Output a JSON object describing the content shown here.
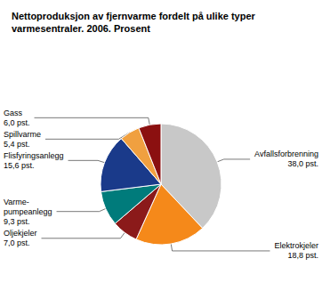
{
  "chart_data": {
    "type": "pie",
    "title": "Nettoproduksjon av fjernvarme fordelt på ulike typer\nvarmesentraler. 2006. Prosent",
    "categories": [
      "Avfallsforbrenning",
      "Elektrokjeler",
      "Oljekjeler",
      "Varme-\npumpeanlegg",
      "Flisfyringsanlegg",
      "Spillvarme",
      "Gass"
    ],
    "values": [
      38.0,
      18.8,
      7.0,
      9.3,
      15.6,
      5.4,
      6.0
    ],
    "value_labels": [
      "38,0 pst.",
      "18,8 pst.",
      "7,0 pst.",
      "9,3 pst.",
      "15,6 pst.",
      "5,4 pst.",
      "6,0 pst."
    ],
    "colors": [
      "#c8c8c8",
      "#f5891a",
      "#8b1a1a",
      "#007b7b",
      "#1a3a8a",
      "#f0a040",
      "#8b1010"
    ],
    "data_labels": true,
    "legend": false
  }
}
